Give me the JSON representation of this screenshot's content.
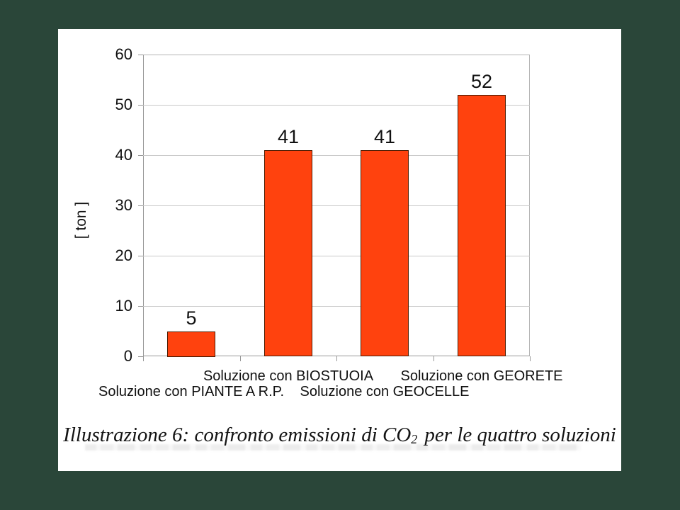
{
  "background_color": "#2a4639",
  "panel_background": "#ffffff",
  "chart_data": {
    "type": "bar",
    "title": "",
    "categories": [
      "Soluzione con PIANTE A R.P.",
      "Soluzione con BIOSTUOIA",
      "Soluzione con GEOCELLE",
      "Soluzione con GEORETE"
    ],
    "values": [
      5,
      41,
      41,
      52
    ],
    "xlabel": "",
    "ylabel": "[ ton ]",
    "ylim": [
      0,
      60
    ],
    "yticks": [
      0,
      10,
      20,
      30,
      40,
      50,
      60
    ],
    "grid": true,
    "legend": "none",
    "bar_color": "#ff420e",
    "bar_border_color": "#4d1a00",
    "grid_color": "#c9c9c9",
    "axis_color": "#979797",
    "text_color": "#111111"
  },
  "caption": {
    "prefix": "Illustrazione 6: confronto emissioni di CO",
    "subscript": "2",
    "suffix": "per le quattro soluzioni"
  }
}
